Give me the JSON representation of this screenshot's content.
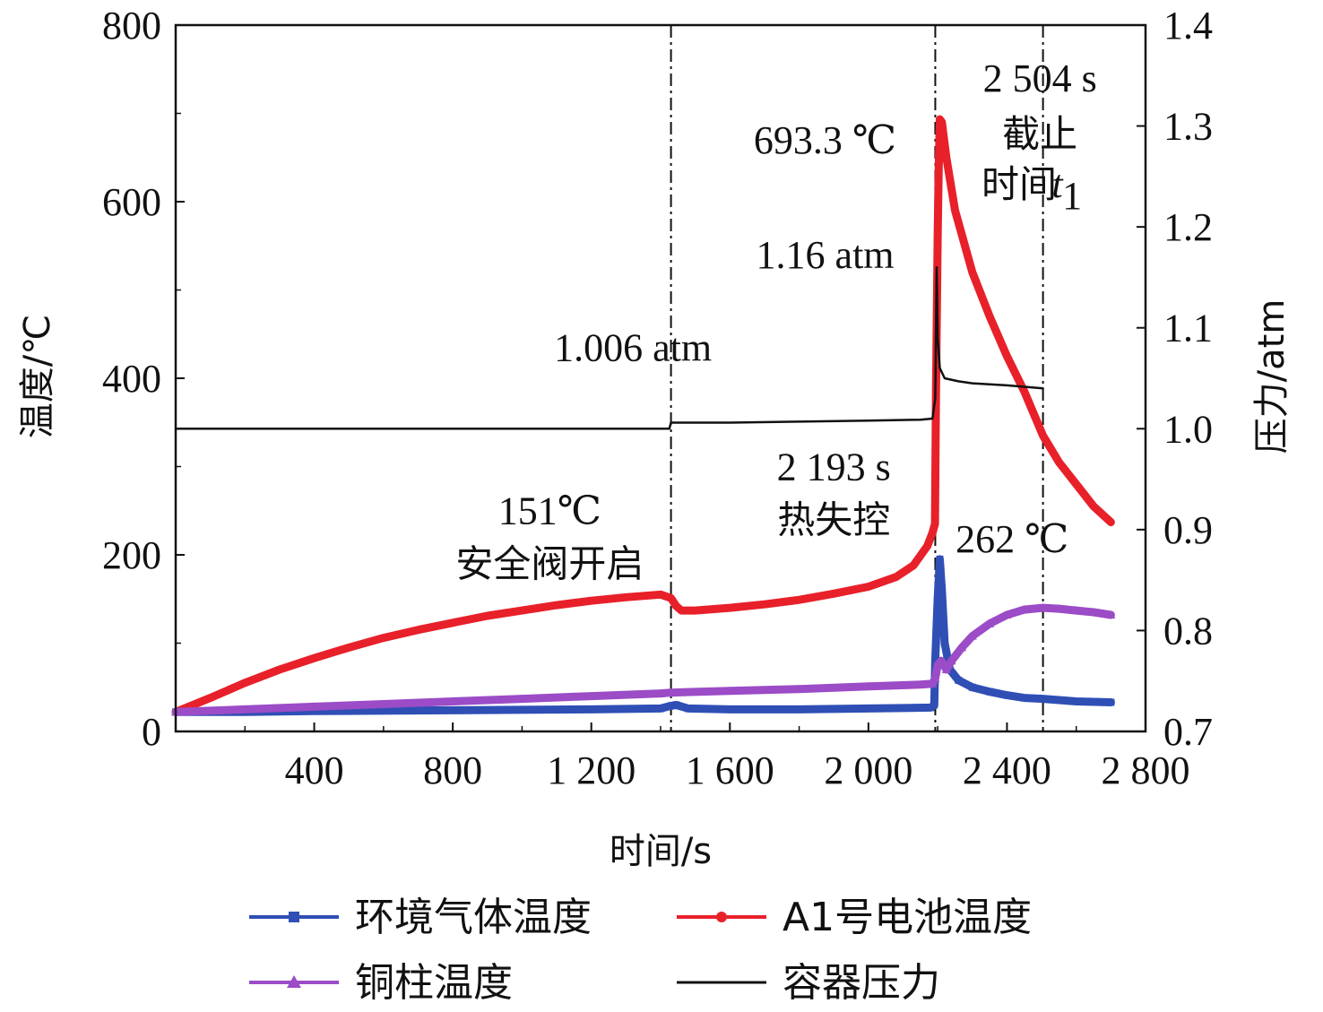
{
  "chart_data": {
    "type": "line",
    "xlabel": "时间/s",
    "ylabel_left": "温度/℃",
    "ylabel_right": "压力/atm",
    "xlim": [
      0,
      2800
    ],
    "ylim_left": [
      0,
      800
    ],
    "ylim_right": [
      0.7,
      1.4
    ],
    "x_ticks": [
      {
        "value": 400,
        "label": "400"
      },
      {
        "value": 800,
        "label": "800"
      },
      {
        "value": 1200,
        "label": "1 200"
      },
      {
        "value": 1600,
        "label": "1 600"
      },
      {
        "value": 2000,
        "label": "2 000"
      },
      {
        "value": 2400,
        "label": "2 400"
      },
      {
        "value": 2800,
        "label": "2 800"
      }
    ],
    "y_left_ticks": [
      {
        "value": 0,
        "label": "0"
      },
      {
        "value": 200,
        "label": "200"
      },
      {
        "value": 400,
        "label": "400"
      },
      {
        "value": 600,
        "label": "600"
      },
      {
        "value": 800,
        "label": "800"
      }
    ],
    "y_right_ticks": [
      {
        "value": 0.7,
        "label": "0.7"
      },
      {
        "value": 0.8,
        "label": "0.8"
      },
      {
        "value": 0.9,
        "label": "0.9"
      },
      {
        "value": 1.0,
        "label": "1.0"
      },
      {
        "value": 1.1,
        "label": "1.1"
      },
      {
        "value": 1.2,
        "label": "1.2"
      },
      {
        "value": 1.3,
        "label": "1.3"
      },
      {
        "value": 1.4,
        "label": "1.4"
      }
    ],
    "vlines": [
      1430,
      2193,
      2504
    ],
    "series": [
      {
        "name": "环境气体温度",
        "axis": "left",
        "color": "#2f4fb5",
        "marker": "square",
        "points": [
          [
            0,
            22
          ],
          [
            200,
            22
          ],
          [
            400,
            23
          ],
          [
            800,
            24
          ],
          [
            1200,
            25
          ],
          [
            1400,
            26
          ],
          [
            1430,
            29
          ],
          [
            1445,
            30
          ],
          [
            1480,
            26
          ],
          [
            1600,
            25
          ],
          [
            1800,
            25
          ],
          [
            2000,
            26
          ],
          [
            2180,
            27
          ],
          [
            2190,
            30
          ],
          [
            2193,
            80
          ],
          [
            2200,
            150
          ],
          [
            2206,
            195
          ],
          [
            2212,
            160
          ],
          [
            2220,
            100
          ],
          [
            2235,
            70
          ],
          [
            2260,
            58
          ],
          [
            2300,
            50
          ],
          [
            2350,
            45
          ],
          [
            2400,
            41
          ],
          [
            2450,
            38
          ],
          [
            2504,
            37
          ],
          [
            2600,
            34
          ],
          [
            2700,
            33
          ]
        ]
      },
      {
        "name": "A1号电池温度",
        "axis": "left",
        "color": "#e8202a",
        "marker": "circle",
        "points": [
          [
            0,
            22
          ],
          [
            100,
            38
          ],
          [
            200,
            55
          ],
          [
            300,
            70
          ],
          [
            400,
            83
          ],
          [
            500,
            95
          ],
          [
            600,
            106
          ],
          [
            700,
            115
          ],
          [
            800,
            123
          ],
          [
            900,
            131
          ],
          [
            1000,
            137
          ],
          [
            1100,
            143
          ],
          [
            1200,
            148
          ],
          [
            1300,
            152
          ],
          [
            1400,
            155
          ],
          [
            1430,
            151
          ],
          [
            1445,
            142
          ],
          [
            1460,
            137
          ],
          [
            1500,
            137
          ],
          [
            1600,
            140
          ],
          [
            1700,
            144
          ],
          [
            1800,
            149
          ],
          [
            1900,
            156
          ],
          [
            2000,
            164
          ],
          [
            2080,
            175
          ],
          [
            2130,
            188
          ],
          [
            2170,
            210
          ],
          [
            2185,
            225
          ],
          [
            2192,
            235
          ],
          [
            2195,
            380
          ],
          [
            2200,
            560
          ],
          [
            2203,
            640
          ],
          [
            2206,
            693.3
          ],
          [
            2212,
            690
          ],
          [
            2225,
            650
          ],
          [
            2250,
            590
          ],
          [
            2300,
            520
          ],
          [
            2350,
            470
          ],
          [
            2400,
            425
          ],
          [
            2450,
            385
          ],
          [
            2504,
            335
          ],
          [
            2550,
            305
          ],
          [
            2600,
            280
          ],
          [
            2650,
            255
          ],
          [
            2700,
            237
          ]
        ]
      },
      {
        "name": "铜柱温度",
        "axis": "left",
        "color": "#9b4cc6",
        "marker": "triangle",
        "points": [
          [
            0,
            22
          ],
          [
            200,
            25
          ],
          [
            400,
            28
          ],
          [
            600,
            31
          ],
          [
            800,
            34
          ],
          [
            1000,
            37
          ],
          [
            1200,
            40
          ],
          [
            1400,
            43
          ],
          [
            1430,
            44
          ],
          [
            1600,
            46
          ],
          [
            1800,
            48
          ],
          [
            2000,
            51
          ],
          [
            2150,
            53
          ],
          [
            2185,
            54
          ],
          [
            2193,
            60
          ],
          [
            2200,
            75
          ],
          [
            2210,
            80
          ],
          [
            2225,
            70
          ],
          [
            2240,
            80
          ],
          [
            2270,
            95
          ],
          [
            2300,
            108
          ],
          [
            2350,
            122
          ],
          [
            2400,
            132
          ],
          [
            2450,
            138
          ],
          [
            2504,
            140
          ],
          [
            2550,
            139
          ],
          [
            2600,
            137
          ],
          [
            2650,
            135
          ],
          [
            2700,
            132
          ]
        ]
      },
      {
        "name": "容器压力",
        "axis": "right",
        "color": "#111111",
        "marker": "none",
        "points": [
          [
            0,
            1.0
          ],
          [
            400,
            1.0
          ],
          [
            800,
            1.0
          ],
          [
            1200,
            1.0
          ],
          [
            1425,
            1.0
          ],
          [
            1430,
            1.006
          ],
          [
            1600,
            1.006
          ],
          [
            1800,
            1.007
          ],
          [
            2000,
            1.008
          ],
          [
            2150,
            1.009
          ],
          [
            2185,
            1.01
          ],
          [
            2193,
            1.03
          ],
          [
            2197,
            1.16
          ],
          [
            2200,
            1.09
          ],
          [
            2206,
            1.06
          ],
          [
            2220,
            1.05
          ],
          [
            2260,
            1.047
          ],
          [
            2300,
            1.045
          ],
          [
            2400,
            1.043
          ],
          [
            2504,
            1.04
          ]
        ]
      }
    ],
    "annotations": [
      {
        "text": "1.006 atm",
        "class": "annot",
        "x": 1320,
        "y": 420,
        "axis": "left",
        "anchor": "middle"
      },
      {
        "text": "151℃",
        "class": "annot",
        "x": 1080,
        "y": 235,
        "axis": "left",
        "anchor": "middle"
      },
      {
        "text": "安全阀开启",
        "class": "annot-cn",
        "x": 1080,
        "y": 175,
        "axis": "left",
        "anchor": "middle"
      },
      {
        "text": "2 193 s",
        "class": "annot",
        "x": 1900,
        "y": 285,
        "axis": "left",
        "anchor": "middle"
      },
      {
        "text": "热失控",
        "class": "annot-cn",
        "x": 1900,
        "y": 225,
        "axis": "left",
        "anchor": "middle"
      },
      {
        "text": "262 ℃",
        "class": "annot",
        "x": 2415,
        "y": 203,
        "axis": "left",
        "anchor": "middle"
      },
      {
        "text": "693.3 ℃",
        "class": "annot",
        "x": 1875,
        "y": 655,
        "axis": "left",
        "anchor": "middle"
      },
      {
        "text": "1.16 atm",
        "class": "annot",
        "x": 1875,
        "y": 525,
        "axis": "left",
        "anchor": "middle"
      },
      {
        "text": "2 504 s",
        "class": "annot",
        "x": 2495,
        "y": 725,
        "axis": "left",
        "anchor": "middle"
      },
      {
        "text": "截止",
        "class": "annot-cn",
        "x": 2495,
        "y": 662,
        "axis": "left",
        "anchor": "middle"
      },
      {
        "text": "时间",
        "class": "annot-cn",
        "x": 2435,
        "y": 605,
        "axis": "left",
        "anchor": "middle"
      },
      {
        "text": "t",
        "class": "annot",
        "x": 2545,
        "y": 605,
        "axis": "left",
        "anchor": "middle"
      },
      {
        "text": "1",
        "class": "annot",
        "x": 2588,
        "y": 592,
        "axis": "left",
        "anchor": "middle"
      }
    ]
  }
}
